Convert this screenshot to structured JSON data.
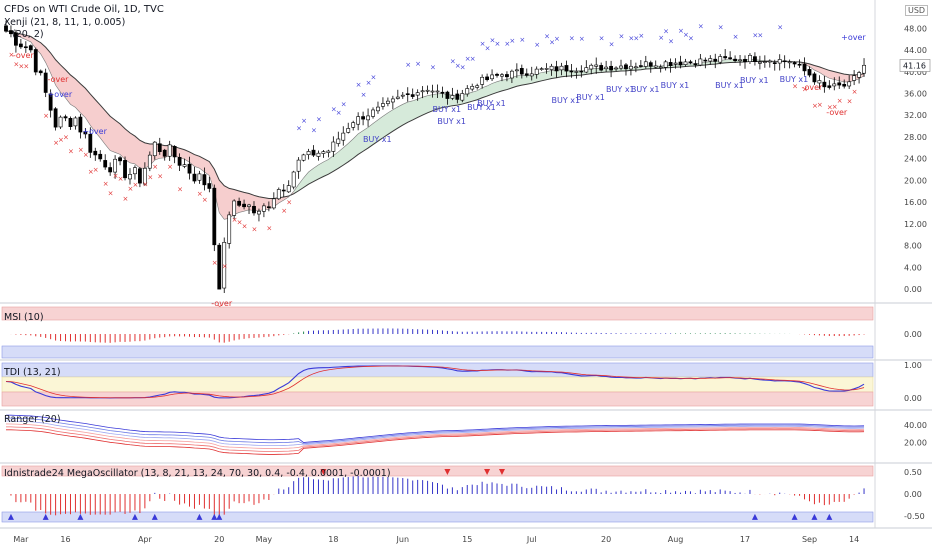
{
  "header": {
    "title": "CFDs on WTI Crude Oil, 1D, TVC",
    "indicator1": "Xenji (21, 8, 11, 1, 0.005)",
    "indicator2": "(20, 2)",
    "currency": "USD"
  },
  "price": {
    "last": "41.16",
    "ticks": [
      "48.00",
      "44.00",
      "40.00",
      "36.00",
      "32.00",
      "28.00",
      "24.00",
      "20.00",
      "16.00",
      "12.00",
      "8.00",
      "4.00",
      "0.00"
    ]
  },
  "x_axis": {
    "labels": [
      "Mar",
      "16",
      "Apr",
      "20",
      "May",
      "18",
      "Jun",
      "15",
      "Jul",
      "20",
      "Aug",
      "17",
      "Sep",
      "14"
    ]
  },
  "panels": {
    "msi": {
      "title": "MSI (10)",
      "ticks": [
        "0.00"
      ]
    },
    "tdi": {
      "title": "TDI (13, 21)",
      "ticks": [
        "1.00",
        "0.00"
      ]
    },
    "ranger": {
      "title": "Ranger (20)",
      "ticks": [
        "40.00",
        "20.00"
      ]
    },
    "mega": {
      "title": "Idnistrade24 MegaOscillator (13, 8, 21, 13, 24, 70, 30, 0.4, -0.4, 0.0001, -0.0001)",
      "ticks": [
        "0.50",
        "0.00",
        "-0.50"
      ]
    }
  },
  "annotations": {
    "over_up": "+over",
    "over_down": "-over",
    "buy": "BUY x1"
  },
  "colors": {
    "up_marker": "#3a3ad8",
    "down_marker": "#e03030",
    "cloud_red": "#f4c5c5",
    "cloud_green": "#cfe6d4",
    "cloud_blue": "#c9cdf0",
    "band_red": "#f7d3d3",
    "band_blue": "#d6dcf8",
    "band_yellow": "#fbf6d6"
  },
  "chart_data": {
    "type": "candlestick",
    "title": "CFDs on WTI Crude Oil, 1D, TVC",
    "ylabel": "USD",
    "ylim": [
      -2,
      51
    ],
    "last_price": 41.16,
    "x_labels": [
      "Mar",
      "16",
      "Apr",
      "20",
      "May",
      "18",
      "Jun",
      "15",
      "Jul",
      "20",
      "Aug",
      "17",
      "Sep",
      "14"
    ],
    "close_path": [
      {
        "day": 0,
        "close": 47.5
      },
      {
        "day": 5,
        "close": 44.0
      },
      {
        "day": 10,
        "close": 30.5
      },
      {
        "day": 14,
        "close": 31.5
      },
      {
        "day": 18,
        "close": 24.5
      },
      {
        "day": 22,
        "close": 22.5
      },
      {
        "day": 27,
        "close": 20.5
      },
      {
        "day": 30,
        "close": 26.5
      },
      {
        "day": 34,
        "close": 24.5
      },
      {
        "day": 38,
        "close": 21.0
      },
      {
        "day": 41,
        "close": 19.0
      },
      {
        "day": 43,
        "close": 0.0
      },
      {
        "day": 45,
        "close": 14.5
      },
      {
        "day": 48,
        "close": 16.0
      },
      {
        "day": 51,
        "close": 13.5
      },
      {
        "day": 54,
        "close": 17.5
      },
      {
        "day": 57,
        "close": 20.5
      },
      {
        "day": 60,
        "close": 24.5
      },
      {
        "day": 65,
        "close": 25.5
      },
      {
        "day": 70,
        "close": 31.0
      },
      {
        "day": 75,
        "close": 33.0
      },
      {
        "day": 80,
        "close": 35.5
      },
      {
        "day": 85,
        "close": 37.0
      },
      {
        "day": 90,
        "close": 35.0
      },
      {
        "day": 95,
        "close": 38.0
      },
      {
        "day": 100,
        "close": 39.5
      },
      {
        "day": 110,
        "close": 40.5
      },
      {
        "day": 120,
        "close": 40.8
      },
      {
        "day": 130,
        "close": 41.5
      },
      {
        "day": 140,
        "close": 42.0
      },
      {
        "day": 150,
        "close": 42.5
      },
      {
        "day": 158,
        "close": 42.0
      },
      {
        "day": 162,
        "close": 39.5
      },
      {
        "day": 165,
        "close": 37.0
      },
      {
        "day": 170,
        "close": 37.5
      },
      {
        "day": 173,
        "close": 41.2
      }
    ]
  }
}
